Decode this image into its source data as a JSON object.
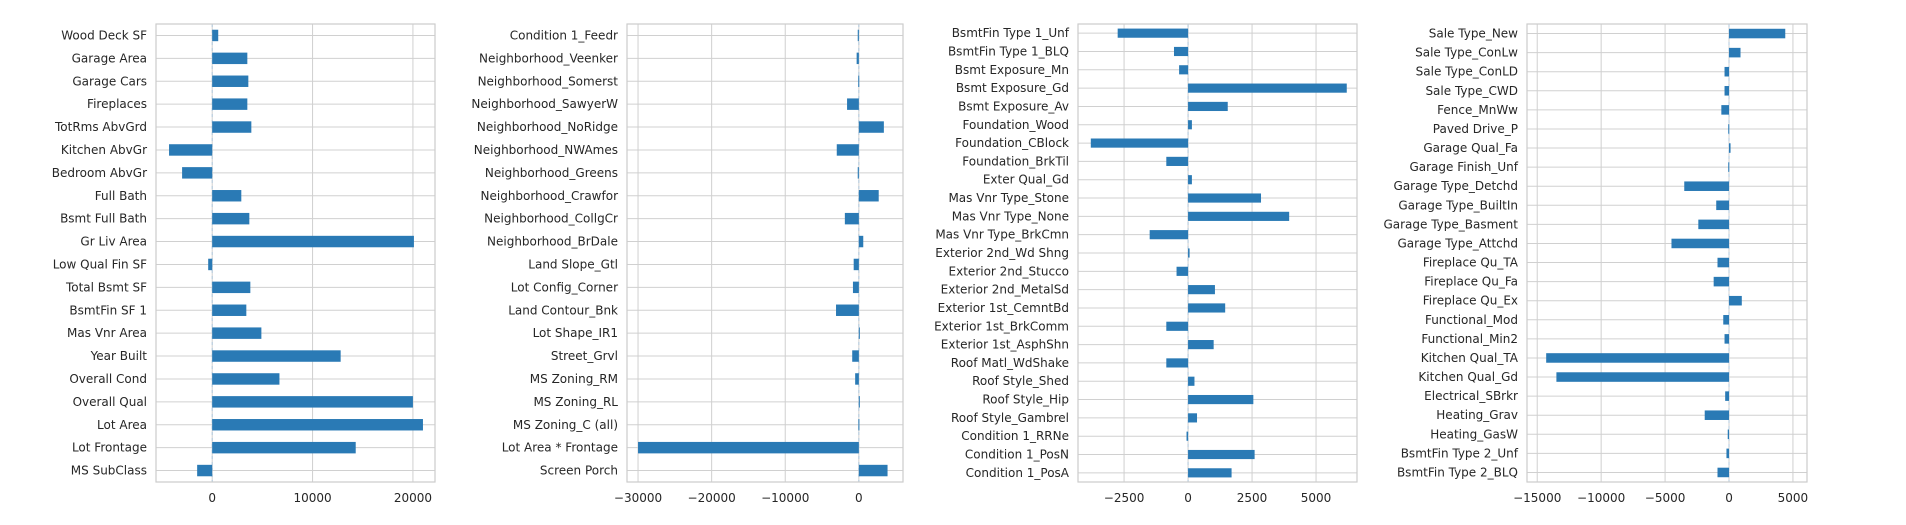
{
  "chart_data": [
    {
      "type": "bar",
      "orientation": "horizontal",
      "bar_color": "#2a7ab5",
      "grid": true,
      "xlim": [
        -5600,
        22200
      ],
      "xticks": [
        0,
        10000,
        20000
      ],
      "xtick_labels": [
        "0",
        "10000",
        "20000"
      ],
      "categories": [
        "MS SubClass",
        "Lot Frontage",
        "Lot Area",
        "Overall Qual",
        "Overall Cond",
        "Year Built",
        "Mas Vnr Area",
        "BsmtFin SF 1",
        "Total Bsmt SF",
        "Low Qual Fin SF",
        "Gr Liv Area",
        "Bsmt Full Bath",
        "Full Bath",
        "Bedroom AbvGr",
        "Kitchen AbvGr",
        "TotRms AbvGrd",
        "Fireplaces",
        "Garage Cars",
        "Garage Area",
        "Wood Deck SF"
      ],
      "values": [
        -1500,
        14300,
        21000,
        20000,
        6700,
        12800,
        4900,
        3400,
        3800,
        -400,
        20100,
        3700,
        2900,
        -3000,
        -4300,
        3900,
        3500,
        3600,
        3500,
        600
      ]
    },
    {
      "type": "bar",
      "orientation": "horizontal",
      "bar_color": "#2a7ab5",
      "grid": true,
      "xlim": [
        -31500,
        6000
      ],
      "xticks": [
        -30000,
        -20000,
        -10000,
        0
      ],
      "xtick_labels": [
        "−30000",
        "−20000",
        "−10000",
        "0"
      ],
      "categories": [
        "Screen Porch",
        "Lot Area * Frontage",
        "MS Zoning_C (all)",
        "MS Zoning_RL",
        "MS Zoning_RM",
        "Street_Grvl",
        "Lot Shape_IR1",
        "Land Contour_Bnk",
        "Lot Config_Corner",
        "Land Slope_Gtl",
        "Neighborhood_BrDale",
        "Neighborhood_CollgCr",
        "Neighborhood_Crawfor",
        "Neighborhood_Greens",
        "Neighborhood_NWAmes",
        "Neighborhood_NoRidge",
        "Neighborhood_SawyerW",
        "Neighborhood_Somerst",
        "Neighborhood_Veenker",
        "Condition 1_Feedr"
      ],
      "values": [
        3900,
        -30000,
        -60,
        120,
        -500,
        -900,
        80,
        -3100,
        -800,
        -700,
        600,
        -1900,
        2700,
        -150,
        -3000,
        3400,
        -1600,
        -80,
        -300,
        -150
      ]
    },
    {
      "type": "bar",
      "orientation": "horizontal",
      "bar_color": "#2a7ab5",
      "grid": true,
      "xlim": [
        -4300,
        6600
      ],
      "xticks": [
        -2500,
        0,
        2500,
        5000
      ],
      "xtick_labels": [
        "−2500",
        "0",
        "2500",
        "5000"
      ],
      "categories": [
        "Condition 1_PosA",
        "Condition 1_PosN",
        "Condition 1_RRNe",
        "Roof Style_Gambrel",
        "Roof Style_Hip",
        "Roof Style_Shed",
        "Roof Matl_WdShake",
        "Exterior 1st_AsphShn",
        "Exterior 1st_BrkComm",
        "Exterior 1st_CemntBd",
        "Exterior 2nd_MetalSd",
        "Exterior 2nd_Stucco",
        "Exterior 2nd_Wd Shng",
        "Mas Vnr Type_BrkCmn",
        "Mas Vnr Type_None",
        "Mas Vnr Type_Stone",
        "Exter Qual_Gd",
        "Foundation_BrkTil",
        "Foundation_CBlock",
        "Foundation_Wood",
        "Bsmt Exposure_Av",
        "Bsmt Exposure_Gd",
        "Bsmt Exposure_Mn",
        "BsmtFin Type 1_BLQ",
        "BsmtFin Type 1_Unf"
      ],
      "values": [
        1700,
        2600,
        -60,
        350,
        2550,
        250,
        -850,
        1000,
        -850,
        1450,
        1050,
        -450,
        60,
        -1500,
        3950,
        2850,
        150,
        -850,
        -3800,
        150,
        1550,
        6200,
        -350,
        -550,
        -2750
      ]
    },
    {
      "type": "bar",
      "orientation": "horizontal",
      "bar_color": "#2a7ab5",
      "grid": true,
      "xlim": [
        -15800,
        6100
      ],
      "xticks": [
        -15000,
        -10000,
        -5000,
        0,
        5000
      ],
      "xtick_labels": [
        "−15000",
        "−10000",
        "−5000",
        "0",
        "5000"
      ],
      "categories": [
        "BsmtFin Type 2_BLQ",
        "BsmtFin Type 2_Unf",
        "Heating_GasW",
        "Heating_Grav",
        "Electrical_SBrkr",
        "Kitchen Qual_Gd",
        "Kitchen Qual_TA",
        "Functional_Min2",
        "Functional_Mod",
        "Fireplace Qu_Ex",
        "Fireplace Qu_Fa",
        "Fireplace Qu_TA",
        "Garage Type_Attchd",
        "Garage Type_Basment",
        "Garage Type_BuiltIn",
        "Garage Type_Detchd",
        "Garage Finish_Unf",
        "Garage Qual_Fa",
        "Paved Drive_P",
        "Fence_MnWw",
        "Sale Type_CWD",
        "Sale Type_ConLD",
        "Sale Type_ConLw",
        "Sale Type_New"
      ],
      "values": [
        -900,
        -200,
        -100,
        -1900,
        -300,
        -13500,
        -14300,
        -350,
        -450,
        1000,
        -1200,
        -900,
        -4500,
        -2400,
        -1000,
        -3500,
        -60,
        120,
        -60,
        -600,
        -350,
        -350,
        900,
        4400
      ]
    }
  ]
}
